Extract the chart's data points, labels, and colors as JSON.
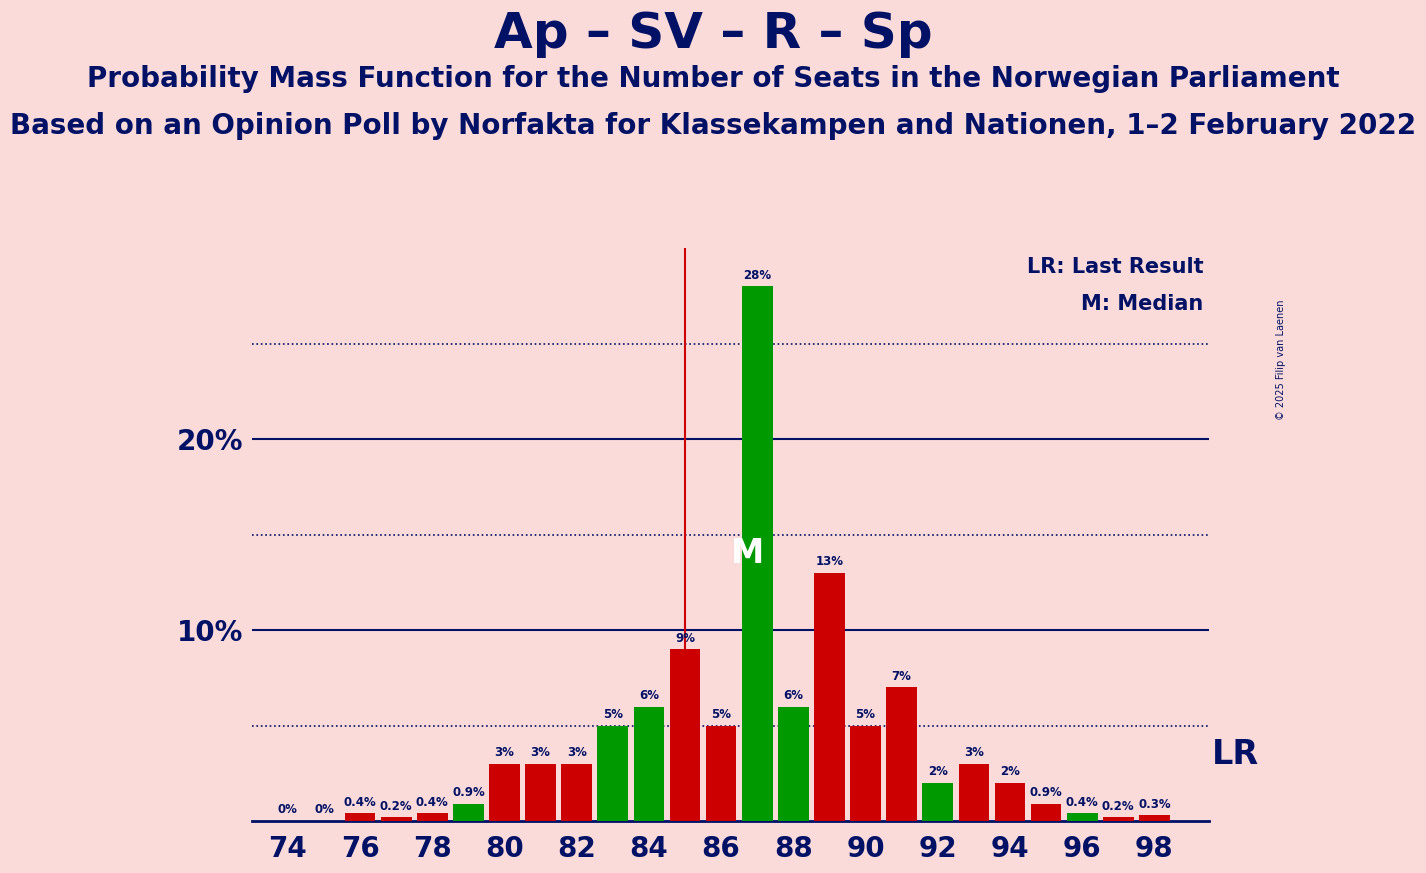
{
  "title": "Ap – SV – R – Sp",
  "subtitle1": "Probability Mass Function for the Number of Seats in the Norwegian Parliament",
  "subtitle2": "Based on an Opinion Poll by Norfakta for Klassekampen and Nationen, 1–2 February 2022",
  "copyright": "© 2025 Filip van Laenen",
  "background_color": "#FBDADA",
  "plot_background_color": "#FBDADA",
  "bar_color_green": "#009900",
  "bar_color_red": "#CC0000",
  "title_color": "#001166",
  "lr_line_color": "#CC0000",
  "lr_seat": 85,
  "median_seat": 87,
  "seats": [
    74,
    75,
    76,
    77,
    78,
    79,
    80,
    81,
    82,
    83,
    84,
    85,
    86,
    87,
    88,
    89,
    90,
    91,
    92,
    93,
    94,
    95,
    96,
    97,
    98
  ],
  "probabilities": [
    0.0,
    0.0,
    0.4,
    0.2,
    0.4,
    0.9,
    3.0,
    3.0,
    3.0,
    5.0,
    6.0,
    9.0,
    5.0,
    28.0,
    6.0,
    13.0,
    5.0,
    7.0,
    2.0,
    3.0,
    2.0,
    0.9,
    0.4,
    0.2,
    0.3
  ],
  "green_seats": [
    79,
    83,
    84,
    87,
    88,
    92,
    96
  ],
  "label_map": {
    "74": "0%",
    "75": "0%",
    "76": "0.4%",
    "77": "0.2%",
    "78": "0.4%",
    "79": "0.9%",
    "80": "3%",
    "81": "3%",
    "82": "3%",
    "83": "5%",
    "84": "6%",
    "85": "9%",
    "86": "5%",
    "87": "28%",
    "88": "6%",
    "89": "13%",
    "90": "5%",
    "91": "7%",
    "92": "2%",
    "93": "3%",
    "94": "2%",
    "95": "0.9%",
    "96": "0.4%",
    "97": "0.2%",
    "98": "0.3%"
  },
  "ylim": [
    0,
    30
  ],
  "xlabel_seats": [
    74,
    76,
    78,
    80,
    82,
    84,
    86,
    88,
    90,
    92,
    94,
    96,
    98
  ],
  "title_fontsize": 36,
  "subtitle1_fontsize": 20,
  "subtitle2_fontsize": 20,
  "bar_width": 0.85,
  "solid_hlines": [
    10,
    20
  ],
  "dotted_hlines": [
    5,
    15,
    25
  ]
}
